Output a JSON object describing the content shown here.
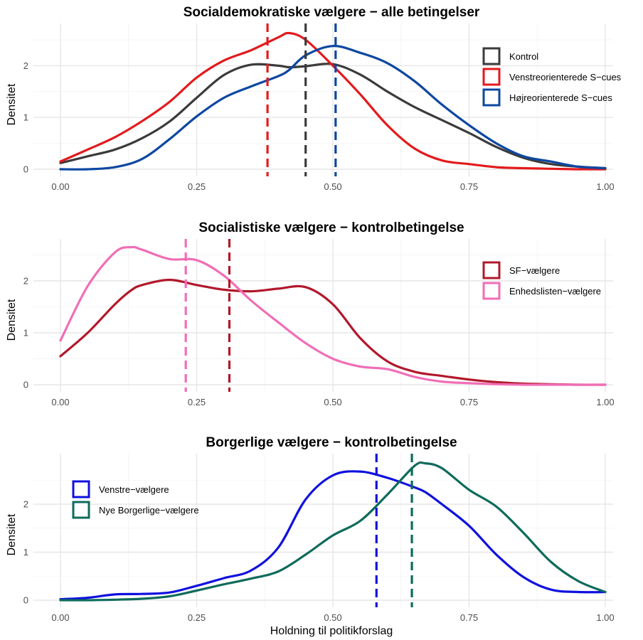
{
  "chart_data": [
    {
      "type": "line",
      "title": "Socialdemokratiske vælgere − alle betingelser",
      "ylabel": "Densitet",
      "xlim": [
        0,
        1
      ],
      "ylim": [
        0,
        2.7
      ],
      "xticks": [
        "0.00",
        "0.25",
        "0.50",
        "0.75",
        "1.00"
      ],
      "yticks": [
        "0",
        "1",
        "2"
      ],
      "legend_position": "right",
      "x": [
        0,
        0.05,
        0.1,
        0.15,
        0.2,
        0.25,
        0.3,
        0.35,
        0.4,
        0.42,
        0.45,
        0.5,
        0.55,
        0.6,
        0.65,
        0.7,
        0.75,
        0.8,
        0.85,
        0.9,
        0.95,
        1.0
      ],
      "series": [
        {
          "name": "Kontrol",
          "color": "#3b3b3b",
          "mean": 0.45,
          "values": [
            0.12,
            0.25,
            0.38,
            0.6,
            0.92,
            1.38,
            1.82,
            2.02,
            2.0,
            1.97,
            1.99,
            2.03,
            1.83,
            1.5,
            1.2,
            0.95,
            0.7,
            0.43,
            0.22,
            0.1,
            0.05,
            0.02
          ]
        },
        {
          "name": "Venstreorienterede S−cues",
          "color": "#e31a1c",
          "mean": 0.38,
          "values": [
            0.15,
            0.38,
            0.62,
            0.93,
            1.3,
            1.77,
            2.1,
            2.3,
            2.55,
            2.63,
            2.5,
            2.0,
            1.45,
            0.85,
            0.4,
            0.17,
            0.1,
            0.04,
            0.02,
            0.01,
            0.0,
            0.0
          ]
        },
        {
          "name": "Højreorienterede S−cues",
          "color": "#0d47a1",
          "mean": 0.505,
          "values": [
            0.0,
            0.0,
            0.04,
            0.2,
            0.58,
            1.02,
            1.38,
            1.6,
            1.8,
            1.92,
            2.2,
            2.38,
            2.25,
            2.05,
            1.7,
            1.25,
            0.85,
            0.5,
            0.25,
            0.15,
            0.05,
            0.02
          ]
        }
      ]
    },
    {
      "type": "line",
      "title": "Socialistiske vælgere − kontrolbetingelse",
      "ylabel": "Densitet",
      "xlim": [
        0,
        1
      ],
      "ylim": [
        0,
        2.7
      ],
      "xticks": [
        "0.00",
        "0.25",
        "0.50",
        "0.75",
        "1.00"
      ],
      "yticks": [
        "0",
        "1",
        "2"
      ],
      "legend_position": "right",
      "x": [
        0,
        0.05,
        0.1,
        0.13,
        0.15,
        0.2,
        0.25,
        0.3,
        0.35,
        0.4,
        0.45,
        0.5,
        0.55,
        0.6,
        0.65,
        0.7,
        0.75,
        0.8,
        0.85,
        0.9,
        0.95,
        1.0
      ],
      "series": [
        {
          "name": "SF−vælgere",
          "color": "#b2182b",
          "mean": 0.31,
          "values": [
            0.55,
            1.0,
            1.55,
            1.82,
            1.92,
            2.02,
            1.92,
            1.83,
            1.8,
            1.85,
            1.88,
            1.55,
            0.9,
            0.45,
            0.25,
            0.17,
            0.1,
            0.05,
            0.02,
            0.01,
            0.0,
            0.0
          ]
        },
        {
          "name": "Enhedslisten−vælgere",
          "color": "#f06eb6",
          "mean": 0.23,
          "values": [
            0.85,
            1.9,
            2.55,
            2.65,
            2.6,
            2.42,
            2.4,
            2.1,
            1.62,
            1.2,
            0.8,
            0.5,
            0.35,
            0.3,
            0.15,
            0.06,
            0.03,
            0.01,
            0.0,
            0.0,
            0.0,
            0.0
          ]
        }
      ]
    },
    {
      "type": "line",
      "title": "Borgerlige vælgere − kontrolbetingelse",
      "ylabel": "Densitet",
      "xlabel": "Holdning til politikforslag",
      "xlim": [
        0,
        1
      ],
      "ylim": [
        0,
        2.95
      ],
      "xticks": [
        "0.00",
        "0.25",
        "0.50",
        "0.75",
        "1.00"
      ],
      "yticks": [
        "0",
        "1",
        "2"
      ],
      "legend_position": "left",
      "x": [
        0,
        0.05,
        0.1,
        0.15,
        0.2,
        0.25,
        0.3,
        0.35,
        0.4,
        0.45,
        0.5,
        0.55,
        0.6,
        0.65,
        0.67,
        0.7,
        0.75,
        0.8,
        0.85,
        0.9,
        0.95,
        1.0
      ],
      "series": [
        {
          "name": "Venstre−vælgere",
          "color": "#1010e0",
          "mean": 0.58,
          "values": [
            0.02,
            0.05,
            0.12,
            0.13,
            0.16,
            0.3,
            0.46,
            0.62,
            1.1,
            2.1,
            2.6,
            2.68,
            2.55,
            2.35,
            2.25,
            2.0,
            1.55,
            0.95,
            0.48,
            0.22,
            0.17,
            0.17
          ]
        },
        {
          "name": "Nye Borgerlige−vælgere",
          "color": "#0e6b5b",
          "mean": 0.645,
          "values": [
            0.0,
            0.0,
            0.01,
            0.03,
            0.08,
            0.2,
            0.33,
            0.45,
            0.6,
            0.95,
            1.35,
            1.65,
            2.2,
            2.8,
            2.85,
            2.75,
            2.3,
            1.95,
            1.4,
            0.8,
            0.4,
            0.17
          ]
        }
      ]
    }
  ]
}
